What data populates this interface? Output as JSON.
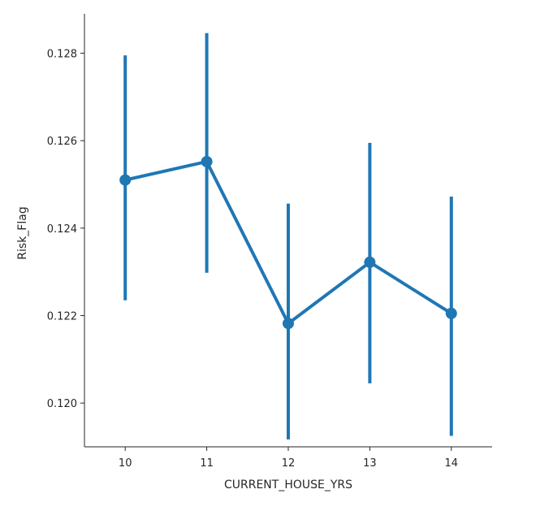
{
  "chart_data": {
    "type": "line",
    "title": "",
    "xlabel": "CURRENT_HOUSE_YRS",
    "ylabel": "Risk_Flag",
    "categories": [
      "10",
      "11",
      "12",
      "13",
      "14"
    ],
    "series": [
      {
        "values": [
          0.1251,
          0.12552,
          0.12182,
          0.12322,
          0.12205
        ],
        "ci_low": [
          0.12235,
          0.12298,
          0.11917,
          0.12045,
          0.11925
        ],
        "ci_high": [
          0.12795,
          0.12846,
          0.12456,
          0.12595,
          0.12472
        ],
        "color": "#1f77b4"
      }
    ],
    "yticks": [
      "0.120",
      "0.122",
      "0.124",
      "0.126",
      "0.128"
    ],
    "ytick_values": [
      0.12,
      0.122,
      0.124,
      0.126,
      0.128
    ],
    "ylim": [
      0.119,
      0.1289
    ],
    "grid": false,
    "legend": "none"
  }
}
